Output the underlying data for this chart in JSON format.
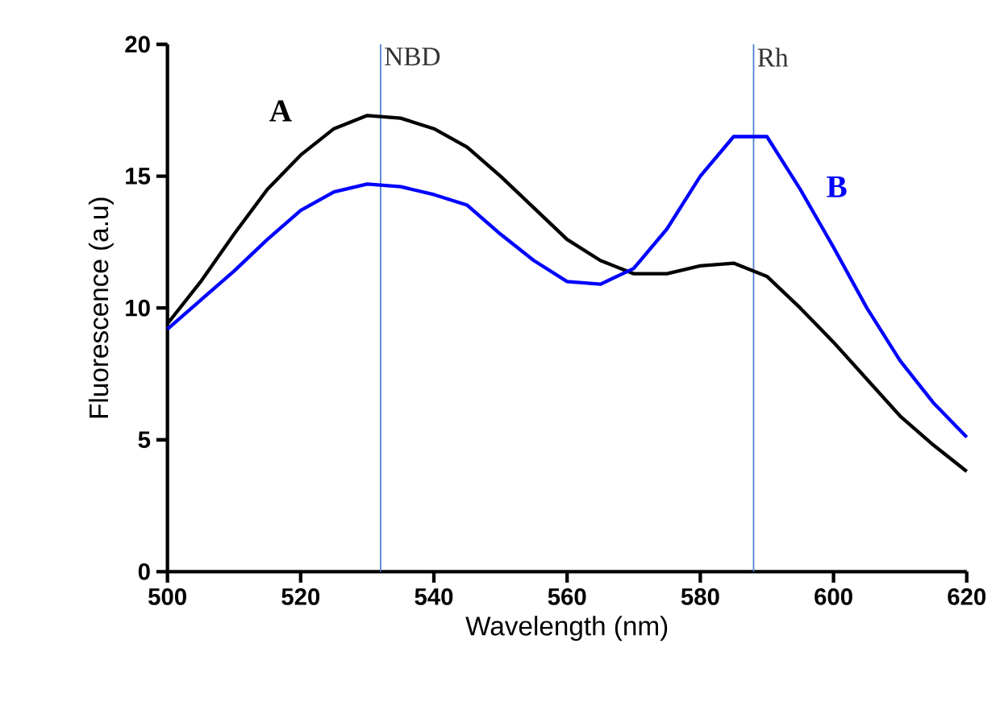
{
  "chart_data": {
    "type": "line",
    "xlabel": "Wavelength (nm)",
    "ylabel": "Fluorescence (a.u)",
    "x": [
      500,
      505,
      510,
      515,
      520,
      525,
      530,
      535,
      540,
      545,
      550,
      555,
      560,
      565,
      570,
      575,
      580,
      585,
      590,
      595,
      600,
      605,
      610,
      615,
      620
    ],
    "series": [
      {
        "color": "#000000",
        "values": [
          9.4,
          11.0,
          12.8,
          14.5,
          15.8,
          16.8,
          17.3,
          17.2,
          16.8,
          16.1,
          15.0,
          13.8,
          12.6,
          11.8,
          11.3,
          11.3,
          11.6,
          11.7,
          11.2,
          10.0,
          8.7,
          7.3,
          5.9,
          4.8,
          3.8
        ]
      },
      {
        "color": "#0000ff",
        "values": [
          9.2,
          10.3,
          11.4,
          12.6,
          13.7,
          14.4,
          14.7,
          14.6,
          14.3,
          13.9,
          12.8,
          11.8,
          11.0,
          10.9,
          11.5,
          13.0,
          15.0,
          16.5,
          16.5,
          14.5,
          12.3,
          10.0,
          8.0,
          6.4,
          5.1
        ]
      }
    ],
    "annotations": [
      "A",
      "B"
    ],
    "ref_lines": [
      {
        "axis": "x",
        "value": 532,
        "label": "NBD",
        "color": "#4a7fd8"
      },
      {
        "axis": "x",
        "value": 588,
        "label": "Rh",
        "color": "#4a7fd8"
      }
    ],
    "xlim": [
      500,
      620
    ],
    "ylim": [
      0,
      20
    ],
    "xticks": [
      500,
      520,
      540,
      560,
      580,
      600,
      620
    ],
    "yticks": [
      0,
      5,
      10,
      15,
      20
    ],
    "grid": false,
    "marker": "none",
    "line_style": "solid"
  }
}
